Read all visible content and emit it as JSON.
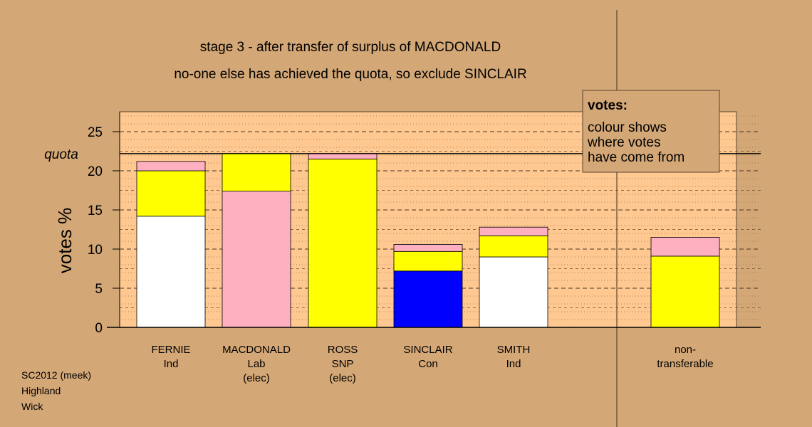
{
  "chart_data": {
    "type": "bar",
    "stacked": true,
    "title": "stage 3 - after transfer of surplus of MACDONALD",
    "subtitle": "no-one else has achieved the quota, so exclude SINCLAIR",
    "ylabel": "votes %",
    "ylim": [
      0,
      27.5
    ],
    "yticks": [
      0,
      5,
      10,
      15,
      20,
      25
    ],
    "quota": 22.2,
    "quota_label": "quota",
    "categories": [
      {
        "lines": [
          "FERNIE",
          "Ind"
        ]
      },
      {
        "lines": [
          "MACDONALD",
          "Lab",
          "(elec)"
        ]
      },
      {
        "lines": [
          "ROSS",
          "SNP",
          "(elec)"
        ]
      },
      {
        "lines": [
          "SINCLAIR",
          "Con"
        ]
      },
      {
        "lines": [
          "SMITH",
          "Ind"
        ]
      },
      {
        "lines": [
          "non-",
          "transferable"
        ]
      }
    ],
    "bars": [
      {
        "segments": [
          {
            "value": 14.2,
            "color": "#FFFFFF"
          },
          {
            "value": 5.8,
            "color": "#FFFF00"
          },
          {
            "value": 1.2,
            "color": "#FFB0C0"
          }
        ]
      },
      {
        "segments": [
          {
            "value": 17.4,
            "color": "#FFB0C0"
          },
          {
            "value": 4.8,
            "color": "#FFFF00"
          }
        ]
      },
      {
        "segments": [
          {
            "value": 21.5,
            "color": "#FFFF00"
          },
          {
            "value": 0.7,
            "color": "#FFB0C0"
          }
        ]
      },
      {
        "segments": [
          {
            "value": 7.2,
            "color": "#0000FF"
          },
          {
            "value": 2.5,
            "color": "#FFFF00"
          },
          {
            "value": 0.9,
            "color": "#FFB0C0"
          }
        ]
      },
      {
        "segments": [
          {
            "value": 9.0,
            "color": "#FFFFFF"
          },
          {
            "value": 2.7,
            "color": "#FFFF00"
          },
          {
            "value": 1.1,
            "color": "#FFB0C0"
          }
        ]
      },
      {
        "segments": [
          {
            "value": 9.1,
            "color": "#FFFF00"
          },
          {
            "value": 2.4,
            "color": "#FFB0C0"
          }
        ]
      }
    ],
    "legend": {
      "title": "votes:",
      "lines": [
        "colour shows",
        "where votes",
        "have come from"
      ],
      "placement": "top-right"
    },
    "grid": true,
    "colors": {
      "background": "#D4A776",
      "plot_area": "#FFC890"
    }
  },
  "footer": {
    "lines": [
      "SC2012 (meek)",
      "Highland",
      "Wick"
    ]
  }
}
